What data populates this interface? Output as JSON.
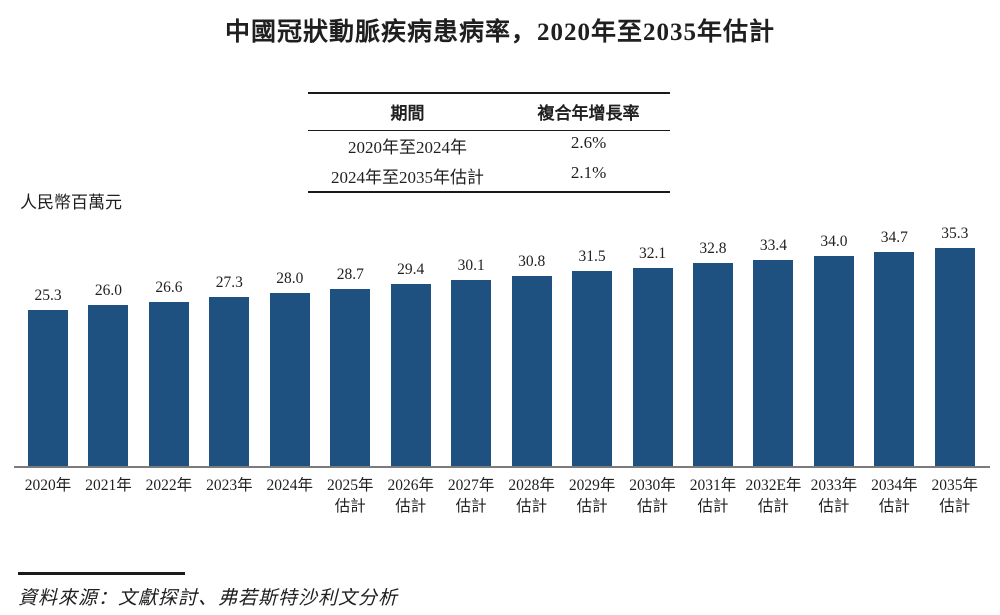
{
  "title": "中國冠狀動脈疾病患病率，2020年至2035年估計",
  "summary_table": {
    "headers": {
      "period": "期間",
      "cagr": "複合年增長率"
    },
    "rows": [
      {
        "period": "2020年至2024年",
        "cagr": "2.6%"
      },
      {
        "period": "2024年至2035年估計",
        "cagr": "2.1%"
      }
    ]
  },
  "unit_label": "人民幣百萬元",
  "chart_data": {
    "type": "bar",
    "title": "中國冠狀動脈疾病患病率，2020年至2035年估計",
    "ylabel": "人民幣百萬元",
    "categories": [
      "2020年",
      "2021年",
      "2022年",
      "2023年",
      "2024年",
      "2025年估計",
      "2026年估計",
      "2027年估計",
      "2028年估計",
      "2029年估計",
      "2030年估計",
      "2031年估計",
      "2032E年估計",
      "2033年估計",
      "2034年估計",
      "2035年估計"
    ],
    "values": [
      25.3,
      26.0,
      26.6,
      27.3,
      28.0,
      28.7,
      29.4,
      30.1,
      30.8,
      31.5,
      32.1,
      32.8,
      33.4,
      34.0,
      34.7,
      35.3
    ],
    "estimate_suffix": "估計",
    "ylim": [
      0,
      35.3
    ],
    "grid": false,
    "legend_position": "none",
    "bar_color": "#1e5080",
    "axis_line_color": "#7b7b7b",
    "label_color": "#222222"
  },
  "source_note": "資料來源：文獻探討、弗若斯特沙利文分析"
}
